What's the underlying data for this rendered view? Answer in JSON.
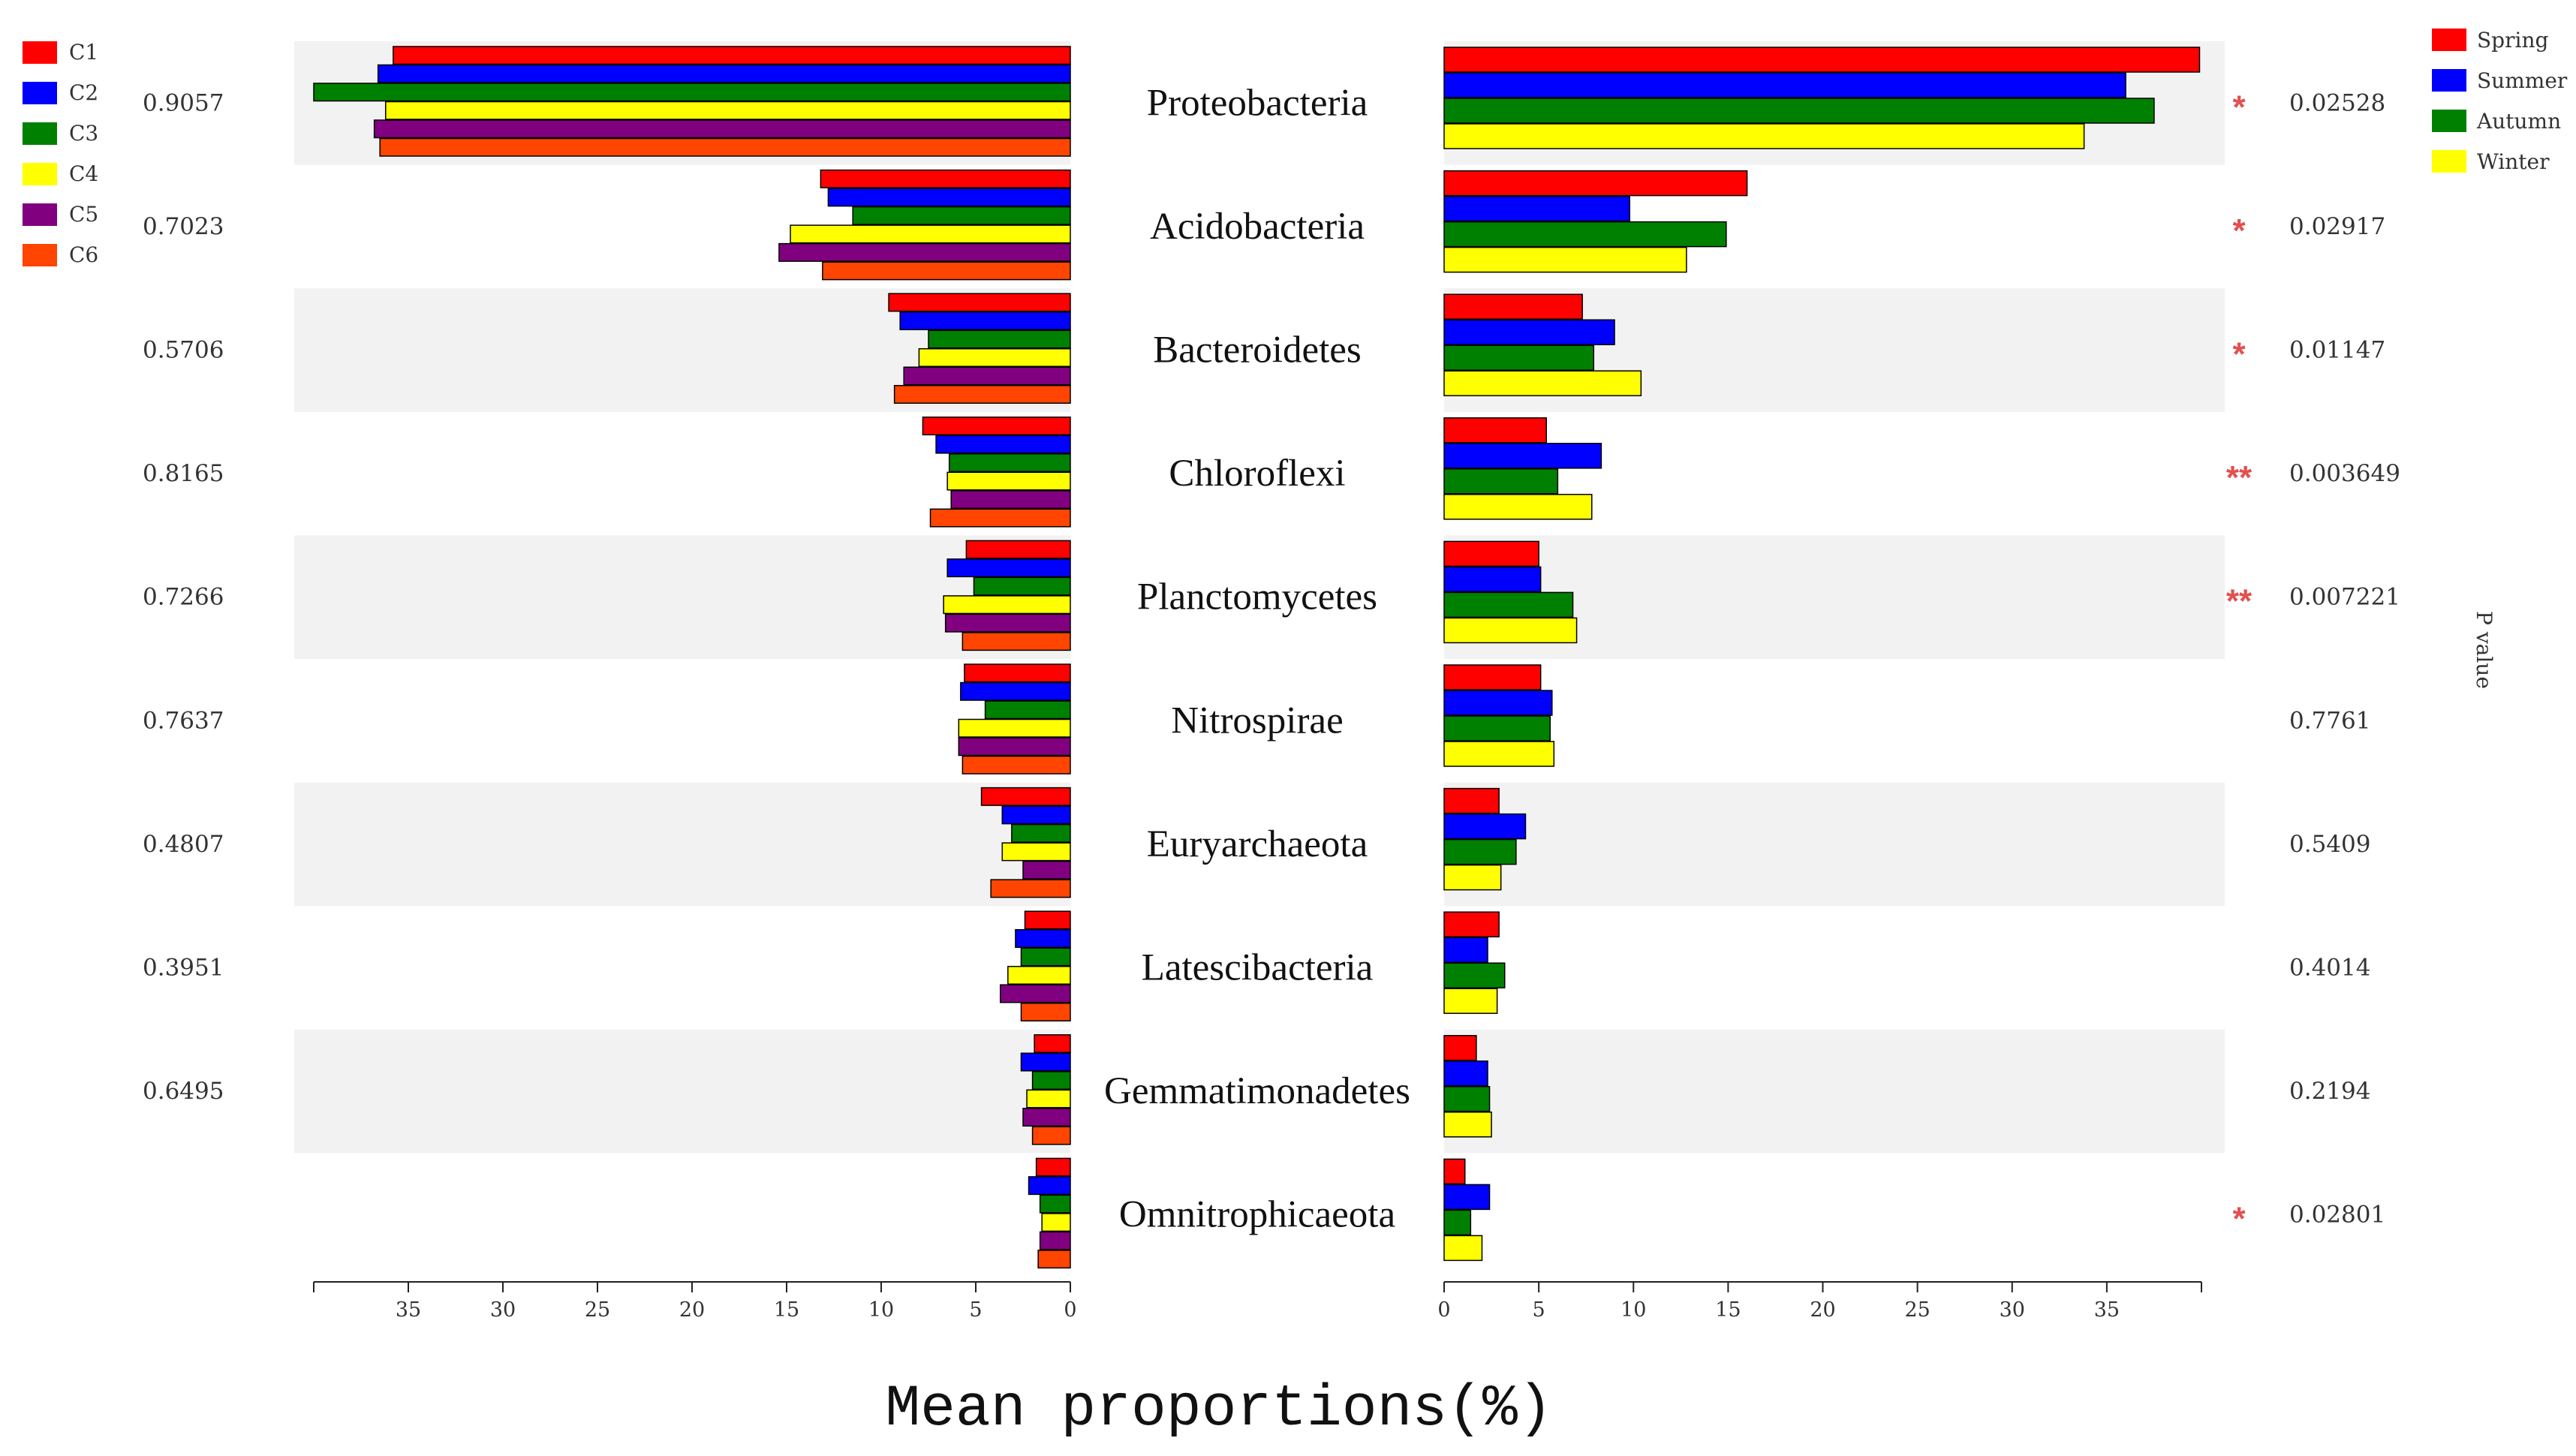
{
  "chart_data": {
    "type": "bar",
    "xlabel": "Mean proportions(%)",
    "right_axis_label": "P value",
    "categories": [
      "Proteobacteria",
      "Acidobacteria",
      "Bacteroidetes",
      "Chloroflexi",
      "Planctomycetes",
      "Nitrospirae",
      "Euryarchaeota",
      "Latescibacteria",
      "Gemmatimonadetes",
      "Omnitrophicaeota"
    ],
    "left_panel": {
      "xlim": [
        0,
        40
      ],
      "ticks": [
        35,
        30,
        25,
        20,
        15,
        10,
        5,
        0
      ],
      "p_values": [
        "0.9057",
        "0.7023",
        "0.5706",
        "0.8165",
        "0.7266",
        "0.7637",
        "0.4807",
        "0.3951",
        "0.6495",
        ""
      ],
      "series": [
        {
          "name": "C1",
          "color": "#ff0000",
          "values": [
            35.8,
            13.2,
            9.6,
            7.8,
            5.5,
            5.6,
            4.7,
            2.4,
            1.9,
            1.8
          ]
        },
        {
          "name": "C2",
          "color": "#0000ff",
          "values": [
            36.6,
            12.8,
            9.0,
            7.1,
            6.5,
            5.8,
            3.6,
            2.9,
            2.6,
            2.2
          ]
        },
        {
          "name": "C3",
          "color": "#008000",
          "values": [
            40.0,
            11.5,
            7.5,
            6.4,
            5.1,
            4.5,
            3.1,
            2.6,
            2.0,
            1.6
          ]
        },
        {
          "name": "C4",
          "color": "#ffff00",
          "values": [
            36.2,
            14.8,
            8.0,
            6.5,
            6.7,
            5.9,
            3.6,
            3.3,
            2.3,
            1.5
          ]
        },
        {
          "name": "C5",
          "color": "#800080",
          "values": [
            36.8,
            15.4,
            8.8,
            6.3,
            6.6,
            5.9,
            2.5,
            3.7,
            2.5,
            1.6
          ]
        },
        {
          "name": "C6",
          "color": "#ff4500",
          "values": [
            36.5,
            13.1,
            9.3,
            7.4,
            5.7,
            5.7,
            4.2,
            2.6,
            2.0,
            1.7
          ]
        }
      ]
    },
    "right_panel": {
      "xlim": [
        0,
        40
      ],
      "ticks": [
        0,
        5,
        10,
        15,
        20,
        25,
        30,
        35
      ],
      "p_values": [
        "0.02528",
        "0.02917",
        "0.01147",
        "0.003649",
        "0.007221",
        "0.7761",
        "0.5409",
        "0.4014",
        "0.2194",
        "0.02801"
      ],
      "significance": [
        "*",
        "*",
        "*",
        "**",
        "**",
        "",
        "",
        "",
        "",
        "*"
      ],
      "series": [
        {
          "name": "Spring",
          "color": "#ff0000",
          "values": [
            39.9,
            16.0,
            7.3,
            5.4,
            5.0,
            5.1,
            2.9,
            2.9,
            1.7,
            1.1
          ]
        },
        {
          "name": "Summer",
          "color": "#0000ff",
          "values": [
            36.0,
            9.8,
            9.0,
            8.3,
            5.1,
            5.7,
            4.3,
            2.3,
            2.3,
            2.4
          ]
        },
        {
          "name": "Autumn",
          "color": "#008000",
          "values": [
            37.5,
            14.9,
            7.9,
            6.0,
            6.8,
            5.6,
            3.8,
            3.2,
            2.4,
            1.4
          ]
        },
        {
          "name": "Winter",
          "color": "#ffff00",
          "values": [
            33.8,
            12.8,
            10.4,
            7.8,
            7.0,
            5.8,
            3.0,
            2.8,
            2.5,
            2.0
          ]
        }
      ]
    }
  }
}
